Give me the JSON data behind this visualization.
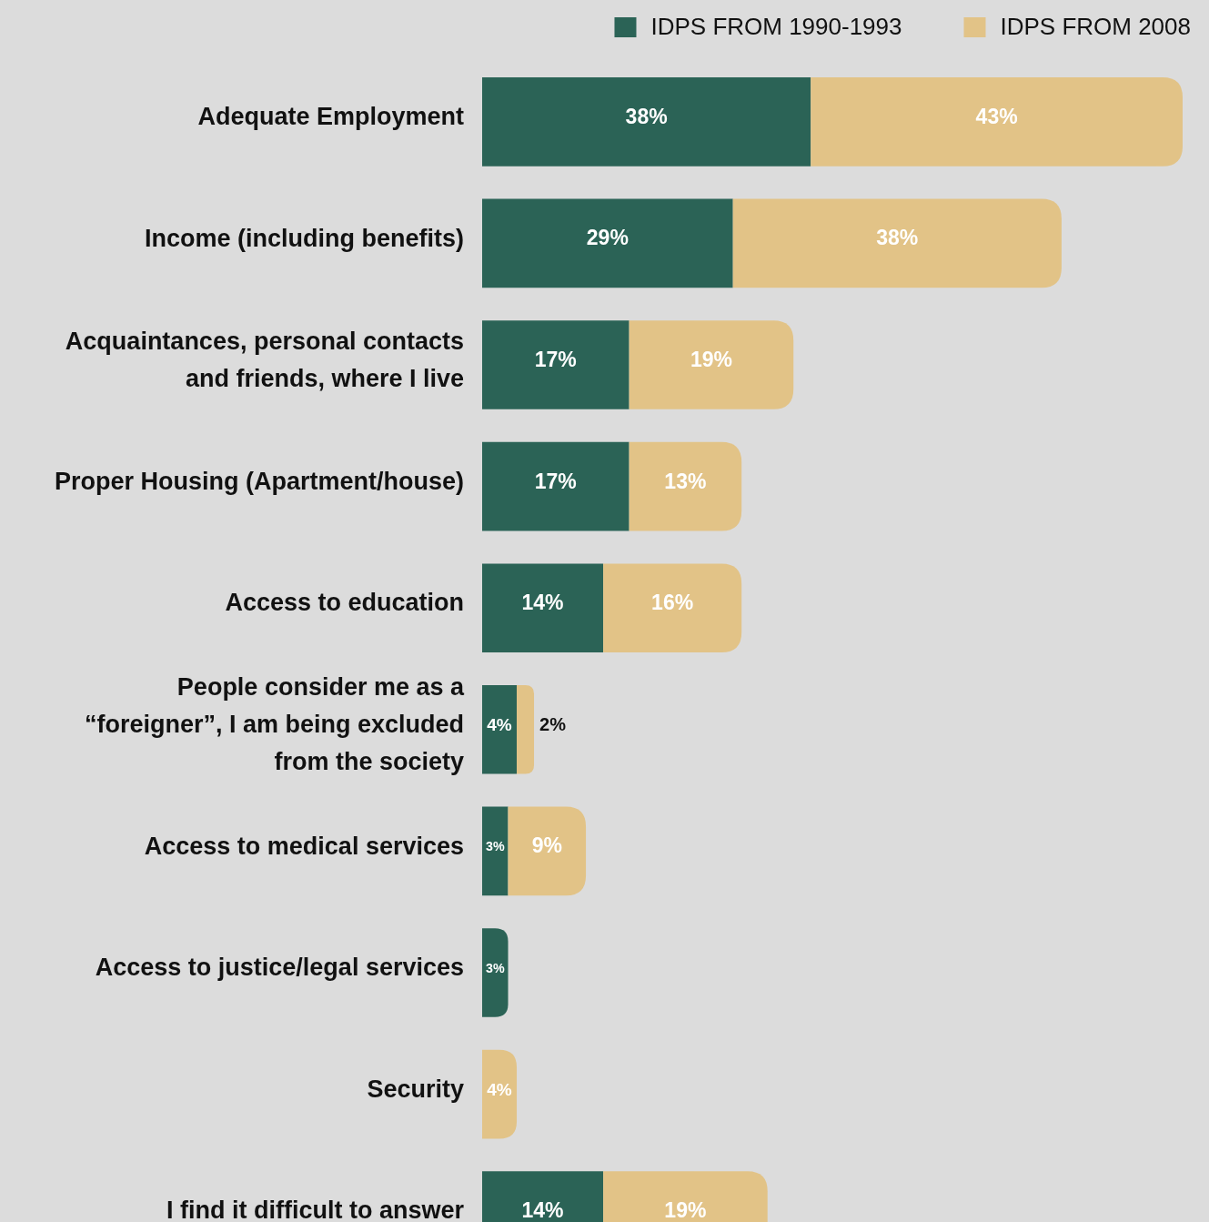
{
  "chart_data": {
    "type": "bar",
    "orientation": "horizontal",
    "stacked": true,
    "legend": "top right",
    "xlim": [
      0,
      81
    ],
    "categories": [
      "Adequate Employment",
      "Income (including benefits)",
      "Acquaintances, personal contacts and friends, where I live",
      "Proper Housing (Apartment/house)",
      "Access to education",
      "People consider me as a “foreigner”, I am being excluded from the society",
      "Access to medical services",
      "Access to justice/legal services",
      "Security",
      "I find it difficult to answer"
    ],
    "series": [
      {
        "name": "IDPS FROM 1990-1993",
        "color": "#2b6356",
        "values": [
          38,
          29,
          17,
          17,
          14,
          4,
          3,
          3,
          null,
          14
        ],
        "value_labels": [
          "38%",
          "29%",
          "17%",
          "17%",
          "14%",
          "4%",
          "3%",
          "3%",
          null,
          "14%"
        ]
      },
      {
        "name": "IDPS FROM 2008",
        "color": "#e2c387",
        "values": [
          43,
          38,
          19,
          13,
          16,
          2,
          9,
          null,
          4,
          19
        ],
        "value_labels": [
          "43%",
          "38%",
          "19%",
          "13%",
          "16%",
          "2%",
          "9%",
          null,
          "4%",
          "19%"
        ]
      }
    ]
  }
}
